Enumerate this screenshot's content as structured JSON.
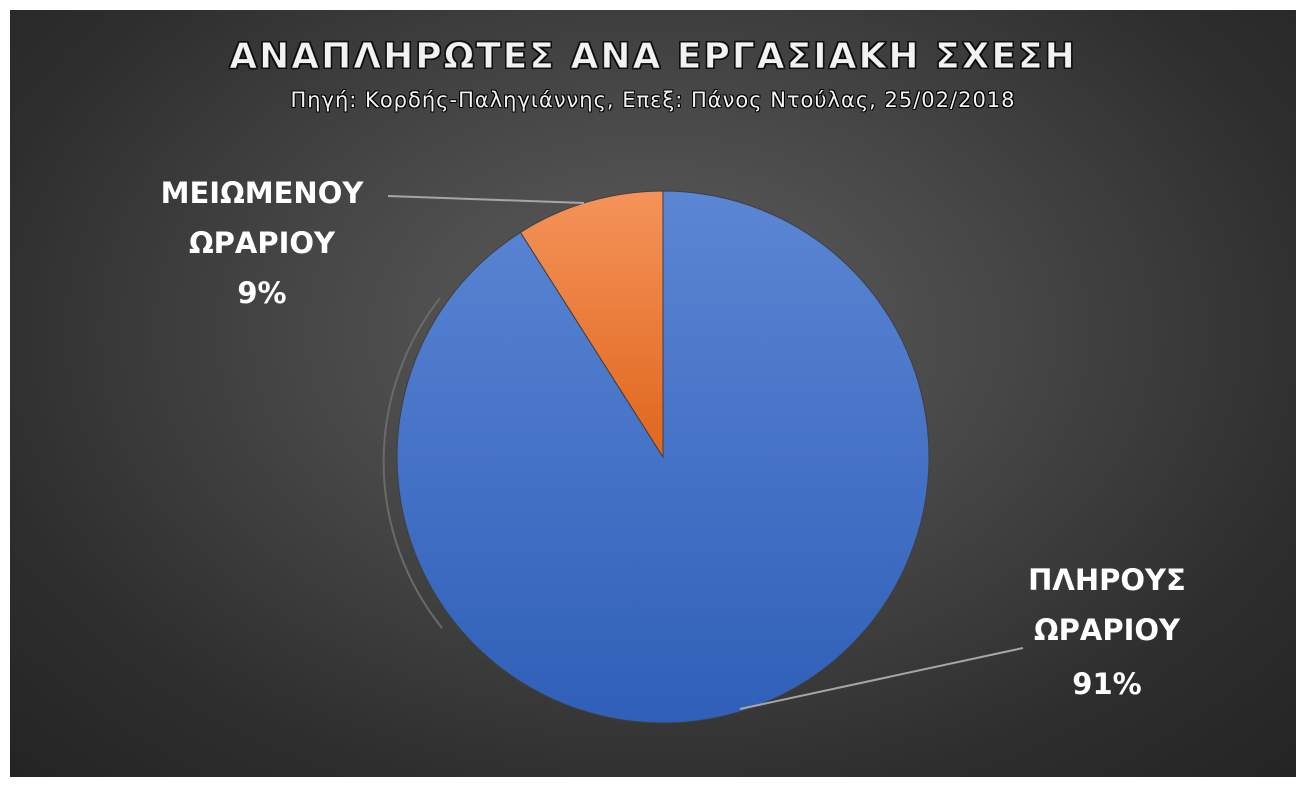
{
  "chart_data": {
    "type": "pie",
    "title": "ΑΝΑΠΛΗΡΩΤΕΣ ΑΝΑ ΕΡΓΑΣΙΑΚΗ ΣΧΕΣΗ",
    "subtitle": "Πηγή: Κορδής-Παληγιάννης, Επεξ: Πάνος Ντούλας, 25/02/2018",
    "slices": [
      {
        "label_lines": [
          "ΠΛΗΡΟΥΣ",
          "ΩΡΑΡΙΟΥ"
        ],
        "percent_label": "91%",
        "value": 91,
        "color": "#4472C4"
      },
      {
        "label_lines": [
          "ΜΕΙΩΜΕΝΟΥ",
          "ΩΡΑΡΙΟΥ"
        ],
        "percent_label": "9%",
        "value": 9,
        "color": "#ED7D31"
      }
    ],
    "legend": "none",
    "data_labels": "outside with leader lines"
  }
}
